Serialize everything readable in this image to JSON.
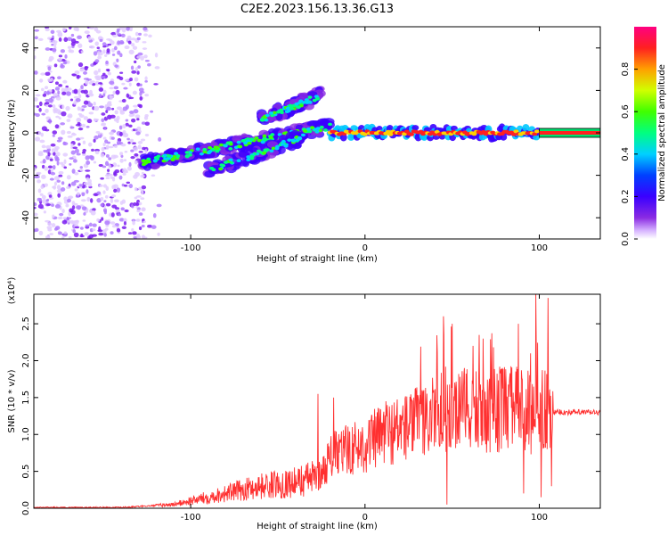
{
  "chart_data": [
    {
      "type": "heatmap",
      "title": "C2E2.2023.156.13.36.G13",
      "xlabel": "Height of straight line (km)",
      "ylabel": "Frequency (Hz)",
      "xlim": [
        -190,
        135
      ],
      "ylim": [
        -50,
        50
      ],
      "x_ticks": [
        -100,
        0,
        100
      ],
      "y_ticks": [
        -40,
        -20,
        0,
        20,
        40
      ],
      "colorbar": {
        "label": "Normalized spectral amplitude",
        "ticks": [
          "0.0",
          "0.2",
          "0.4",
          "0.6",
          "0.8"
        ],
        "range": [
          0,
          1
        ]
      },
      "features": [
        {
          "name": "noise",
          "x": [
            -190,
            -125
          ],
          "y": [
            -50,
            50
          ],
          "amplitude": 0.05
        },
        {
          "name": "main-trace",
          "x": [
            -128,
            -20
          ],
          "y": [
            -14,
            3
          ],
          "amplitude": 0.35
        },
        {
          "name": "lower-branch",
          "x": [
            -90,
            -35
          ],
          "y": [
            -18,
            -2
          ],
          "amplitude": 0.3
        },
        {
          "name": "upper-branch",
          "x": [
            -60,
            -25
          ],
          "y": [
            6,
            18
          ],
          "amplitude": 0.3
        },
        {
          "name": "carrier",
          "x": [
            -20,
            100
          ],
          "y": [
            0,
            0
          ],
          "amplitude": 0.95
        },
        {
          "name": "tail",
          "x": [
            100,
            135
          ],
          "y": [
            0,
            0
          ],
          "amplitude": 0.9
        }
      ]
    },
    {
      "type": "line",
      "xlabel": "Height of straight line (km)",
      "ylabel": "SNR (10 * v/v)",
      "scale_label": "(x10⁴)",
      "xlim": [
        -190,
        135
      ],
      "ylim": [
        0,
        2.9
      ],
      "x_ticks": [
        -100,
        0,
        100
      ],
      "y_ticks": [
        "0.0",
        "0.5",
        "1.0",
        "1.5",
        "2.0",
        "2.5"
      ],
      "envelope": [
        {
          "x": -190,
          "y": 0.01
        },
        {
          "x": -140,
          "y": 0.01
        },
        {
          "x": -110,
          "y": 0.05
        },
        {
          "x": -90,
          "y": 0.15
        },
        {
          "x": -60,
          "y": 0.3
        },
        {
          "x": -40,
          "y": 0.35
        },
        {
          "x": -25,
          "y": 0.45
        },
        {
          "x": -20,
          "y": 0.7
        },
        {
          "x": -10,
          "y": 0.8
        },
        {
          "x": 0,
          "y": 0.85
        },
        {
          "x": 10,
          "y": 1.0
        },
        {
          "x": 30,
          "y": 1.15
        },
        {
          "x": 45,
          "y": 1.3
        },
        {
          "x": 60,
          "y": 1.3
        },
        {
          "x": 80,
          "y": 1.35
        },
        {
          "x": 95,
          "y": 1.3
        },
        {
          "x": 108,
          "y": 1.3
        },
        {
          "x": 135,
          "y": 1.3
        }
      ],
      "peaks": [
        {
          "x": -32,
          "y": 0.47
        },
        {
          "x": -27,
          "y": 1.55
        },
        {
          "x": -24,
          "y": 0.7
        },
        {
          "x": -18,
          "y": 1.5
        },
        {
          "x": 7,
          "y": 1.3
        },
        {
          "x": 12,
          "y": 1.45
        },
        {
          "x": 28,
          "y": 1.5
        },
        {
          "x": 40,
          "y": 1.35
        },
        {
          "x": 45,
          "y": 2.6
        },
        {
          "x": 47,
          "y": 0.05
        },
        {
          "x": 50,
          "y": 2.5
        },
        {
          "x": 57,
          "y": 1.9
        },
        {
          "x": 62,
          "y": 2.2
        },
        {
          "x": 88,
          "y": 2.5
        },
        {
          "x": 91,
          "y": 0.2
        },
        {
          "x": 95,
          "y": 2.1
        },
        {
          "x": 98,
          "y": 2.9
        },
        {
          "x": 101,
          "y": 0.15
        },
        {
          "x": 105,
          "y": 2.85
        },
        {
          "x": 107,
          "y": 0.3
        }
      ],
      "color": "#ff3030"
    }
  ]
}
